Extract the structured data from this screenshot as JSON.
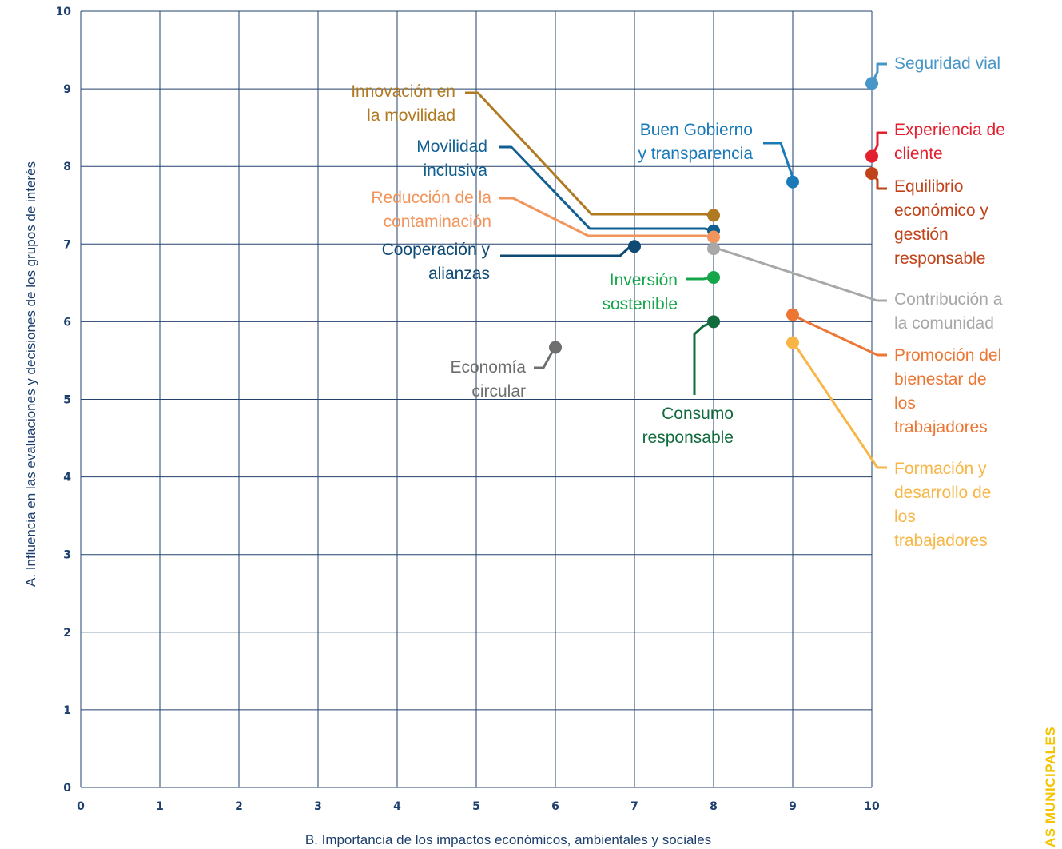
{
  "chart_data": {
    "type": "scatter",
    "xlabel": "B. Importancia de los impactos económicos, ambientales y sociales",
    "ylabel": "A. Influencia en las evaluaciones y decisiones de los grupos de interés",
    "xlim": [
      0,
      10
    ],
    "ylim": [
      0,
      10
    ],
    "xticks": [
      "0",
      "1",
      "2",
      "3",
      "4",
      "5",
      "6",
      "7",
      "8",
      "9",
      "10"
    ],
    "yticks": [
      "0",
      "1",
      "2",
      "3",
      "4",
      "5",
      "6",
      "7",
      "8",
      "9",
      "10"
    ],
    "grid": true,
    "points": [
      {
        "label": [
          "Seguridad vial"
        ],
        "x": 10,
        "y": 9.07,
        "color": "#4896c8"
      },
      {
        "label": [
          "Experiencia de",
          "cliente"
        ],
        "x": 10,
        "y": 8.13,
        "color": "#e3202f"
      },
      {
        "label": [
          "Equilibrio",
          "económico y",
          "gestión",
          "responsable"
        ],
        "x": 10,
        "y": 7.91,
        "color": "#c1431a"
      },
      {
        "label": [
          "Buen Gobierno",
          "y transparencia"
        ],
        "x": 9,
        "y": 7.8,
        "color": "#1a7ab8"
      },
      {
        "label": [
          "Innovación en",
          "la movilidad"
        ],
        "x": 8,
        "y": 7.37,
        "color": "#b07a22"
      },
      {
        "label": [
          "Movilidad",
          "inclusiva"
        ],
        "x": 8,
        "y": 7.17,
        "color": "#125f91"
      },
      {
        "label": [
          "Reducción de la",
          "contaminación"
        ],
        "x": 8,
        "y": 7.09,
        "color": "#f2955c"
      },
      {
        "label": [
          "Contribución a",
          "la comunidad"
        ],
        "x": 8,
        "y": 6.94,
        "color": "#a8a8a8"
      },
      {
        "label": [
          "Cooperación y",
          "alianzas"
        ],
        "x": 7,
        "y": 6.97,
        "color": "#0e4a73"
      },
      {
        "label": [
          "Inversión",
          "sostenible"
        ],
        "x": 8,
        "y": 6.57,
        "color": "#16a64a"
      },
      {
        "label": [
          "Consumo",
          "responsable"
        ],
        "x": 8,
        "y": 6.0,
        "color": "#116b3d"
      },
      {
        "label": [
          "Promoción del",
          "bienestar de",
          "los",
          "trabajadores"
        ],
        "x": 9,
        "y": 6.09,
        "color": "#ee7633"
      },
      {
        "label": [
          "Formación y",
          "desarrollo de",
          "los",
          "trabajadores"
        ],
        "x": 9,
        "y": 5.73,
        "color": "#f7b645"
      },
      {
        "label": [
          "Economía",
          "circular"
        ],
        "x": 6,
        "y": 5.67,
        "color": "#6e6e6e"
      }
    ]
  },
  "side_text": "AS MUNICIPALES",
  "colors": {
    "grid": "#22426e",
    "axis_text": "#1c3f6e"
  }
}
